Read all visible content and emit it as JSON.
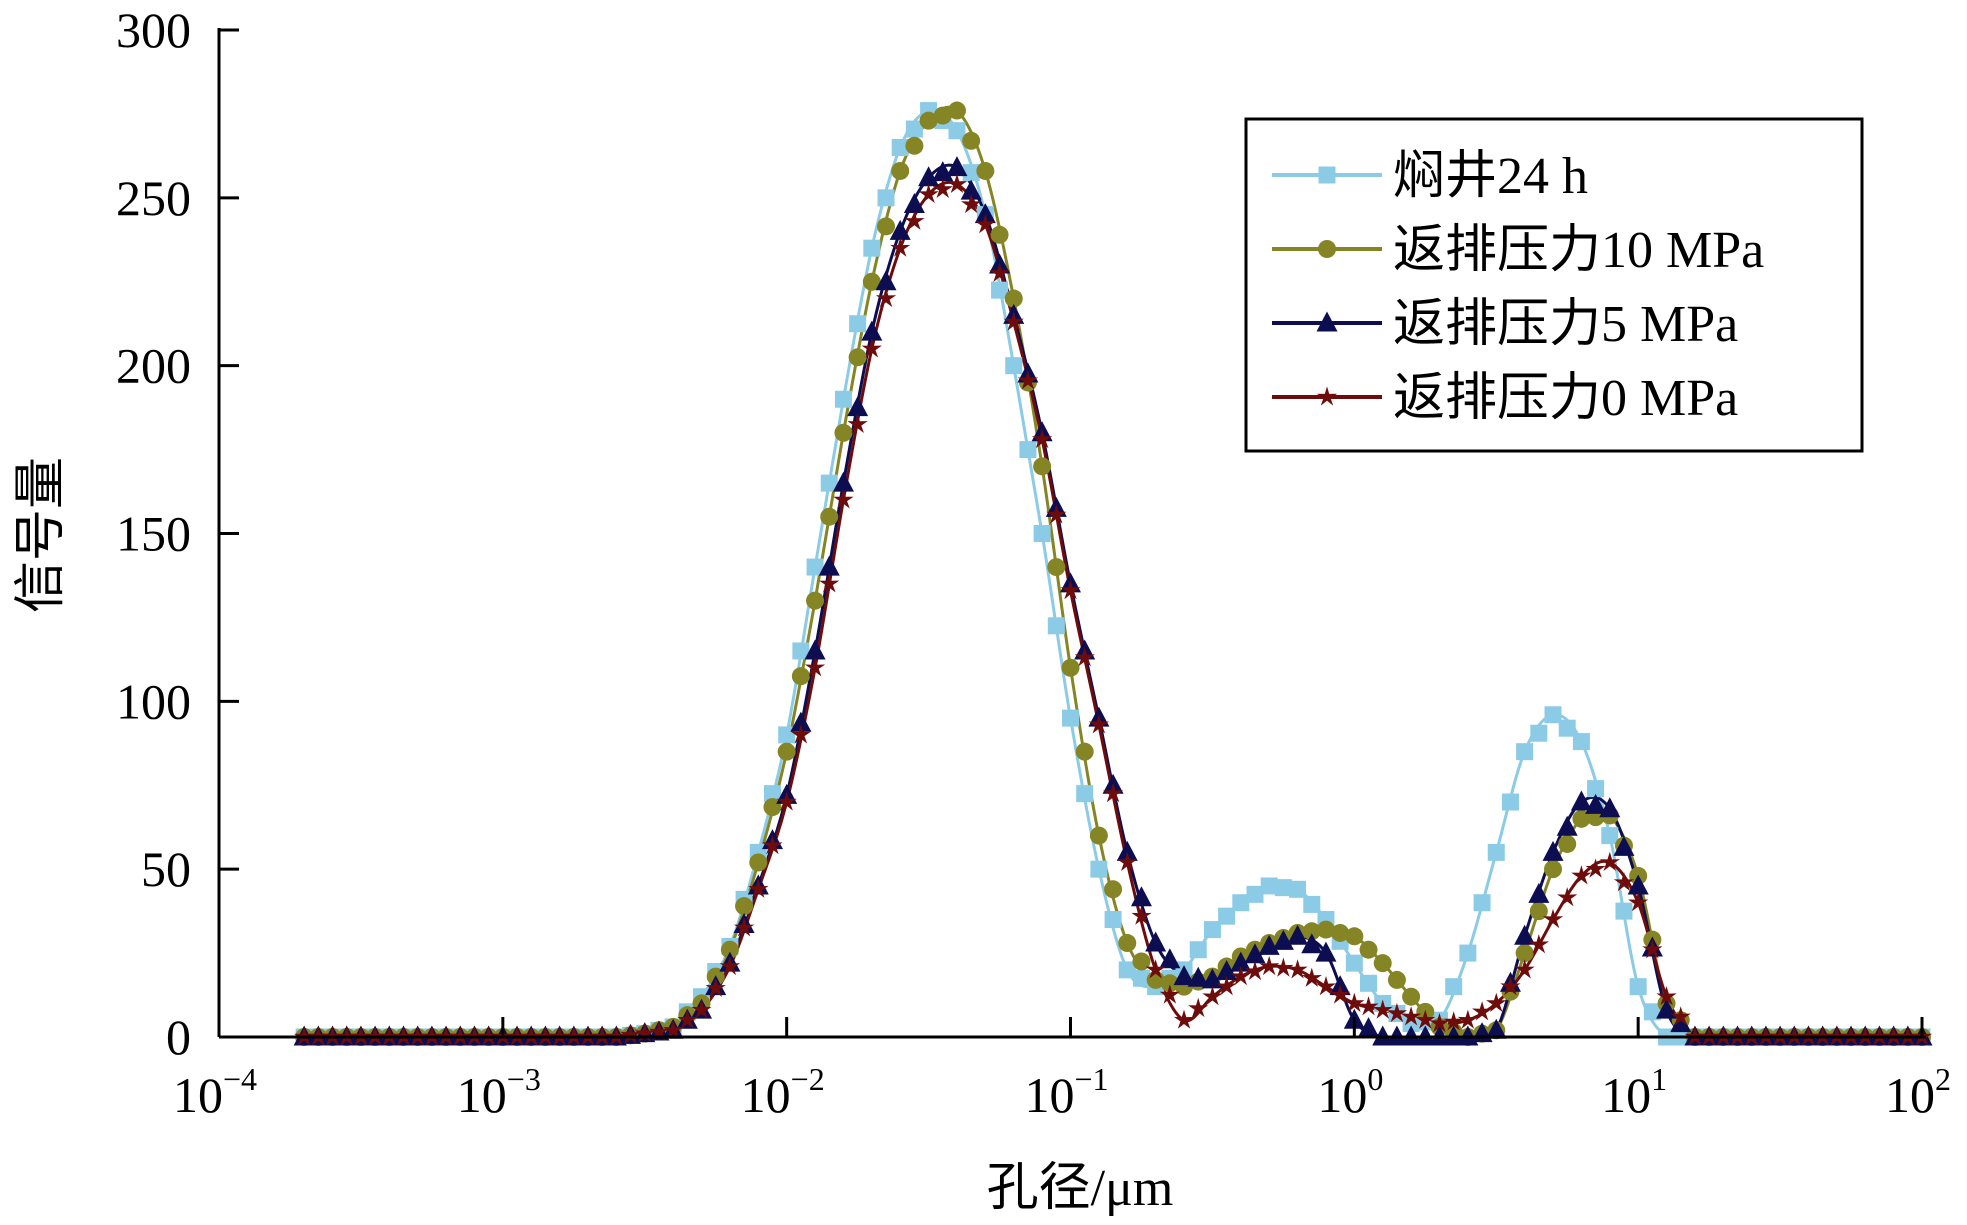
{
  "chart_data": {
    "type": "line",
    "title": "",
    "xlabel": "孔径/μm",
    "ylabel": "信号量",
    "xscale": "log",
    "xlim": [
      0.0001,
      100
    ],
    "ylim": [
      0,
      300
    ],
    "grid": false,
    "legend_position": "top-right",
    "y_ticks": [
      "0",
      "50",
      "100",
      "150",
      "200",
      "250",
      "300"
    ],
    "x_ticks": [
      {
        "base": "10",
        "exp": "−4"
      },
      {
        "base": "10",
        "exp": "−3"
      },
      {
        "base": "10",
        "exp": "−2"
      },
      {
        "base": "10",
        "exp": "−1"
      },
      {
        "base": "10",
        "exp": "0"
      },
      {
        "base": "10",
        "exp": "1"
      },
      {
        "base": "10",
        "exp": "2"
      }
    ],
    "log10_x": [
      -3.7,
      -3.6,
      -3.5,
      -3.4,
      -3.3,
      -3.2,
      -3.1,
      -3.0,
      -2.9,
      -2.8,
      -2.7,
      -2.6,
      -2.5,
      -2.4,
      -2.3,
      -2.2,
      -2.1,
      -2.0,
      -1.9,
      -1.8,
      -1.7,
      -1.6,
      -1.5,
      -1.4,
      -1.3,
      -1.2,
      -1.1,
      -1.0,
      -0.9,
      -0.8,
      -0.7,
      -0.6,
      -0.5,
      -0.4,
      -0.3,
      -0.2,
      -0.1,
      0.0,
      0.1,
      0.2,
      0.3,
      0.4,
      0.5,
      0.6,
      0.7,
      0.8,
      0.9,
      1.0,
      1.1,
      1.2,
      1.3,
      1.4,
      1.5,
      1.6,
      1.7,
      1.8,
      1.9,
      2.0
    ],
    "series": [
      {
        "name": "焖井24 h",
        "color": "#8ccbe6",
        "marker": "square",
        "values": [
          0,
          0,
          0,
          0,
          0,
          0,
          0,
          0,
          0,
          0,
          0,
          0,
          1,
          3,
          12,
          27,
          55,
          90,
          140,
          190,
          235,
          265,
          276,
          270,
          245,
          200,
          150,
          95,
          50,
          20,
          15,
          20,
          32,
          40,
          45,
          44,
          35,
          22,
          10,
          4,
          5,
          25,
          55,
          85,
          96,
          88,
          60,
          15,
          0,
          0,
          0,
          0,
          0,
          0,
          0,
          0,
          0,
          0
        ]
      },
      {
        "name": "返排压力10 MPa",
        "color": "#858525",
        "marker": "circle",
        "values": [
          0,
          0,
          0,
          0,
          0,
          0,
          0,
          0,
          0,
          0,
          0,
          0,
          1,
          3,
          10,
          26,
          52,
          85,
          130,
          180,
          225,
          258,
          273,
          276,
          258,
          220,
          170,
          110,
          60,
          28,
          17,
          15,
          18,
          24,
          28,
          31,
          32,
          30,
          22,
          12,
          3,
          0,
          2,
          25,
          50,
          65,
          66,
          48,
          10,
          0,
          0,
          0,
          0,
          0,
          0,
          0,
          0,
          0
        ]
      },
      {
        "name": "返排压力5 MPa",
        "color": "#0d0d52",
        "marker": "triangle",
        "values": [
          0,
          0,
          0,
          0,
          0,
          0,
          0,
          0,
          0,
          0,
          0,
          0,
          1,
          2,
          8,
          22,
          45,
          72,
          115,
          165,
          210,
          240,
          256,
          259,
          245,
          215,
          180,
          135,
          95,
          55,
          28,
          18,
          17,
          22,
          27,
          30,
          25,
          5,
          0,
          0,
          0,
          0,
          2,
          30,
          55,
          70,
          68,
          45,
          8,
          0,
          0,
          0,
          0,
          0,
          0,
          0,
          0,
          0
        ]
      },
      {
        "name": "返排压力0 MPa",
        "color": "#6e0c0c",
        "marker": "star",
        "values": [
          0,
          0,
          0,
          0,
          0,
          0,
          0,
          0,
          0,
          0,
          0,
          0,
          1,
          2,
          8,
          21,
          44,
          70,
          110,
          160,
          205,
          235,
          251,
          254,
          242,
          213,
          178,
          133,
          93,
          52,
          20,
          5,
          12,
          18,
          21,
          20,
          15,
          10,
          8,
          6,
          4,
          5,
          10,
          20,
          35,
          48,
          52,
          40,
          12,
          0,
          0,
          0,
          0,
          0,
          0,
          0,
          0,
          0
        ]
      }
    ]
  }
}
